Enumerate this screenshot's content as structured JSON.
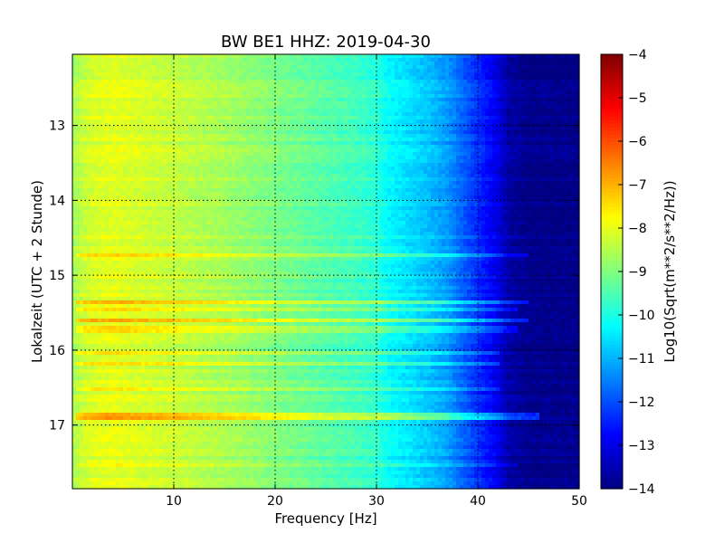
{
  "chart_data": {
    "type": "heatmap",
    "title": "BW BE1 HHZ: 2019-04-30",
    "xlabel": "Frequency [Hz]",
    "ylabel": "Lokalzeit (UTC + 2 Stunde)",
    "colorbar_label": "Log10(Sqrt(m**2/s**2/Hz))",
    "colormap": "jet",
    "xlim": [
      0,
      50
    ],
    "ylim": [
      17.85,
      12.05
    ],
    "x_ticks": [
      10,
      20,
      30,
      40,
      50
    ],
    "y_ticks": [
      13,
      14,
      15,
      16,
      17
    ],
    "color_range": [
      -14,
      -4
    ],
    "colorbar_ticks": [
      -14,
      -13,
      -12,
      -11,
      -10,
      -9,
      -8,
      -7,
      -6,
      -5,
      -4
    ],
    "grid": true,
    "spectrum_profile": {
      "frequency_hz": [
        0,
        1,
        2,
        4,
        6,
        8,
        10,
        15,
        20,
        25,
        28,
        30,
        31,
        33,
        35,
        37,
        38,
        40,
        42,
        43,
        45,
        50
      ],
      "log10_amplitude": [
        -8.6,
        -8.3,
        -8.1,
        -8.0,
        -8.1,
        -8.2,
        -8.3,
        -8.6,
        -9.0,
        -9.4,
        -9.6,
        -9.8,
        -10.2,
        -10.5,
        -10.8,
        -11.2,
        -11.6,
        -12.3,
        -13.0,
        -13.6,
        -13.9,
        -13.9
      ]
    },
    "noise_bands": [
      {
        "time_hours": 14.75,
        "delta": 0.8,
        "fmax_hz": 45
      },
      {
        "time_hours": 15.38,
        "delta": 1.0,
        "fmax_hz": 45
      },
      {
        "time_hours": 15.45,
        "delta": 0.7,
        "fmax_hz": 44
      },
      {
        "time_hours": 15.6,
        "delta": 1.1,
        "fmax_hz": 45
      },
      {
        "time_hours": 15.72,
        "delta": 0.6,
        "fmax_hz": 44
      },
      {
        "time_hours": 16.02,
        "delta": 0.5,
        "fmax_hz": 42
      },
      {
        "time_hours": 16.18,
        "delta": 0.5,
        "fmax_hz": 42
      },
      {
        "time_hours": 16.52,
        "delta": 0.5,
        "fmax_hz": 42
      },
      {
        "time_hours": 16.88,
        "delta": 1.2,
        "fmax_hz": 46
      },
      {
        "time_hours": 17.55,
        "delta": 0.5,
        "fmax_hz": 44
      }
    ]
  }
}
